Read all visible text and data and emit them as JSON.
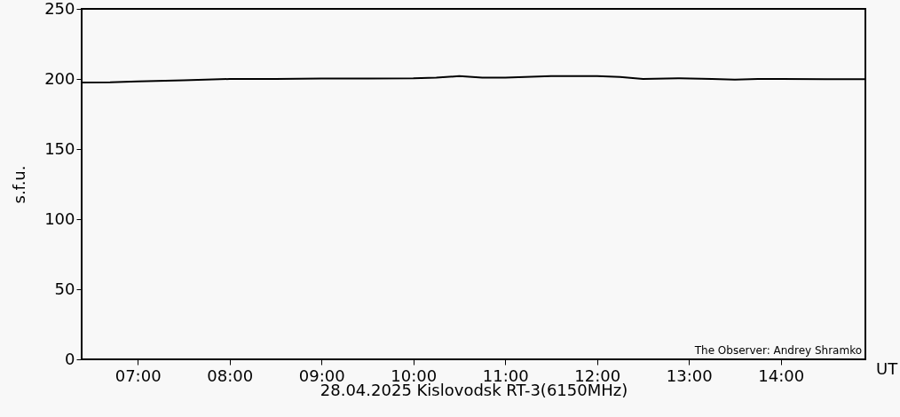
{
  "chart_data": {
    "type": "line",
    "xlabel": "28.04.2025 Kislovodsk RT-3(6150MHz)",
    "ylabel": "s.f.u.",
    "annotations": [
      "The Observer: Andrey Shramko",
      "UT"
    ],
    "x": [
      6.39,
      6.7,
      7.0,
      7.5,
      8.0,
      8.5,
      9.0,
      9.5,
      10.0,
      10.25,
      10.5,
      10.75,
      11.0,
      11.5,
      11.75,
      12.0,
      12.25,
      12.5,
      12.9,
      13.25,
      13.5,
      13.75,
      14.0,
      14.5,
      14.92
    ],
    "series": [
      {
        "color": "#000000",
        "values": [
          197.5,
          197.6,
          198.3,
          199.0,
          200.0,
          200.0,
          200.3,
          200.3,
          200.5,
          201.0,
          202.0,
          201.0,
          201.0,
          202.0,
          202.0,
          202.0,
          201.5,
          200.0,
          200.5,
          200.0,
          199.5,
          200.0,
          200.0,
          199.8,
          199.8
        ]
      }
    ],
    "xlim": [
      6.39,
      14.92
    ],
    "xticks": [
      {
        "value": 7,
        "label": "07:00"
      },
      {
        "value": 8,
        "label": "08:00"
      },
      {
        "value": 9,
        "label": "09:00"
      },
      {
        "value": 10,
        "label": "10:00"
      },
      {
        "value": 11,
        "label": "11:00"
      },
      {
        "value": 12,
        "label": "12:00"
      },
      {
        "value": 13,
        "label": "13:00"
      },
      {
        "value": 14,
        "label": "14:00"
      }
    ],
    "ylim": [
      0,
      250
    ],
    "yticks": [
      0,
      50,
      100,
      150,
      200,
      250
    ],
    "grid": false,
    "marker": "none",
    "line_style": "solid"
  }
}
